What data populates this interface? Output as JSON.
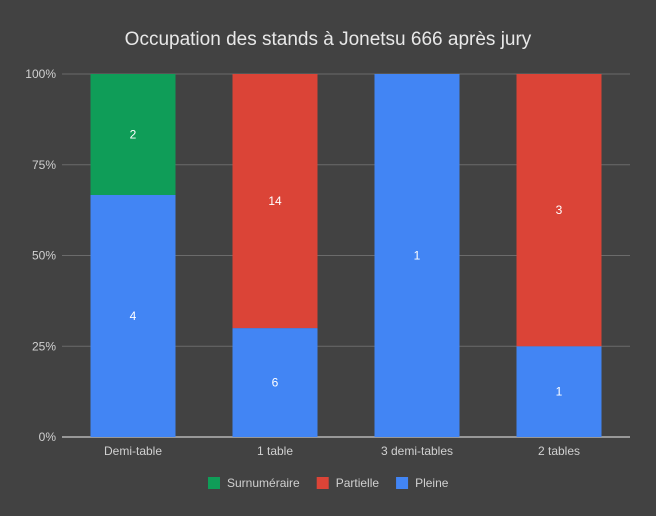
{
  "chart_data": {
    "type": "bar",
    "stacked": "percent",
    "title": "Occupation des stands à Jonetsu 666 après jury",
    "categories": [
      "Demi-table",
      "1 table",
      "3 demi-tables",
      "2 tables"
    ],
    "series": [
      {
        "name": "Pleine",
        "color": "#4285f4",
        "values": [
          4,
          6,
          1,
          1
        ]
      },
      {
        "name": "Partielle",
        "color": "#db4437",
        "values": [
          0,
          14,
          0,
          3
        ]
      },
      {
        "name": "Surnuméraire",
        "color": "#0f9d58",
        "values": [
          2,
          0,
          0,
          0
        ]
      }
    ],
    "legend_order": [
      "Surnuméraire",
      "Partielle",
      "Pleine"
    ],
    "y_ticks": [
      "0%",
      "25%",
      "50%",
      "75%",
      "100%"
    ],
    "ylim": [
      0,
      100
    ],
    "xlabel": "",
    "ylabel": "",
    "grid": true,
    "legend_position": "bottom",
    "colors": {
      "background": "#424242",
      "grid": "#6b6b6b",
      "axis": "#cccccc"
    }
  }
}
